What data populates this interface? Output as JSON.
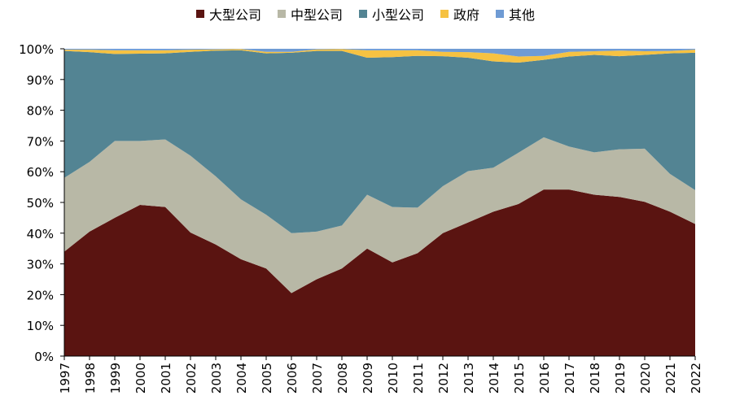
{
  "chart_data": {
    "type": "area",
    "stacked": true,
    "percent": true,
    "title": "",
    "xlabel": "",
    "ylabel": "",
    "ylim": [
      0,
      100
    ],
    "ytick_labels": [
      "0%",
      "10%",
      "20%",
      "30%",
      "40%",
      "50%",
      "60%",
      "70%",
      "80%",
      "90%",
      "100%"
    ],
    "legend_position": "top-center",
    "categories": [
      "1997",
      "1998",
      "1999",
      "2000",
      "2001",
      "2002",
      "2003",
      "2004",
      "2005",
      "2006",
      "2007",
      "2008",
      "2009",
      "2010",
      "2011",
      "2012",
      "2013",
      "2014",
      "2015",
      "2016",
      "2017",
      "2018",
      "2019",
      "2020",
      "2021",
      "2022"
    ],
    "series": [
      {
        "name": "大型公司",
        "color": "#5a1411",
        "values": [
          34,
          40.5,
          45,
          49.2,
          48.5,
          40.2,
          36.3,
          31.5,
          28.5,
          20.5,
          25,
          28.5,
          35,
          30.5,
          33.5,
          40,
          43.5,
          47,
          49.5,
          54.2,
          54.2,
          52.5,
          51.8,
          50.2,
          47,
          43
        ]
      },
      {
        "name": "中型公司",
        "color": "#b8b8a6",
        "values": [
          24,
          22.7,
          25,
          20.8,
          22,
          25,
          22.2,
          19.5,
          17.5,
          19.5,
          15.5,
          14,
          17.5,
          18,
          14.8,
          15.3,
          16.7,
          14.3,
          16.7,
          17,
          14,
          13.8,
          15.5,
          17.3,
          12.3,
          11
        ]
      },
      {
        "name": "小型公司",
        "color": "#538493",
        "values": [
          41.3,
          35.7,
          28.3,
          28.4,
          28,
          33.8,
          40.9,
          48.5,
          52.5,
          58.7,
          58.8,
          56.8,
          44.6,
          48.8,
          49.4,
          42.3,
          36.9,
          34.6,
          29.3,
          25.2,
          29.3,
          31.7,
          30.3,
          30.5,
          39.2,
          44.7
        ]
      },
      {
        "name": "政府",
        "color": "#f6c242",
        "values": [
          0.4,
          0.8,
          1.2,
          1.1,
          1,
          0.7,
          0.4,
          0.4,
          0.5,
          0.3,
          0.5,
          0.6,
          2.4,
          2.2,
          1.8,
          1.4,
          1.8,
          2.6,
          2,
          1.3,
          1.5,
          1.2,
          1.8,
          1.2,
          0.8,
          1
        ]
      },
      {
        "name": "其他",
        "color": "#6f9bd4",
        "values": [
          0.3,
          0.3,
          0.5,
          0.5,
          0.5,
          0.3,
          0.2,
          0.1,
          1,
          1,
          0.2,
          0.1,
          0.5,
          0.5,
          0.5,
          1,
          1.1,
          1.5,
          2.5,
          2.3,
          1,
          0.8,
          0.6,
          0.8,
          0.7,
          0.3
        ]
      }
    ]
  }
}
